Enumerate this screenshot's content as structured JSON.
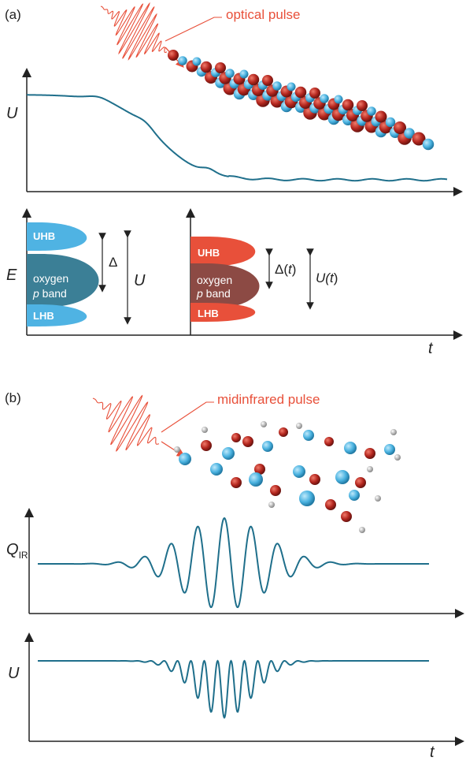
{
  "panel_a": {
    "label": "(a)",
    "pulse_label": "optical pulse",
    "plot_ylabel": "U",
    "energy_ylabel": "E",
    "time_xlabel": "t",
    "before": {
      "uhb": "UHB",
      "oxygen_line1": "oxygen",
      "oxygen_p": "p",
      "oxygen_band": " band",
      "lhb": "LHB",
      "gap": "Δ",
      "u": "U"
    },
    "after": {
      "uhb": "UHB",
      "oxygen_line1": "oxygen",
      "oxygen_p": "p",
      "oxygen_band": " band",
      "lhb": "LHB",
      "gap_sym": "Δ(",
      "gap_t": "t",
      "gap_close": ")",
      "u_sym": "U(",
      "u_t": "t",
      "u_close": ")"
    }
  },
  "panel_b": {
    "label": "(b)",
    "pulse_label": "midinfrared pulse",
    "q_ylabel_main": "Q",
    "q_ylabel_sub": "IR",
    "u_ylabel": "U",
    "time_xlabel": "t"
  },
  "colors": {
    "curve": "#1f6f8b",
    "pulse": "#e8503a",
    "blue_band": "#4fb3e3",
    "teal_band": "#3b7f96",
    "red_band": "#e8503a",
    "dark_red_band": "#8c4a44",
    "oxygen_atom": "#b3261e",
    "metal_atom": "#4ab2e0"
  }
}
